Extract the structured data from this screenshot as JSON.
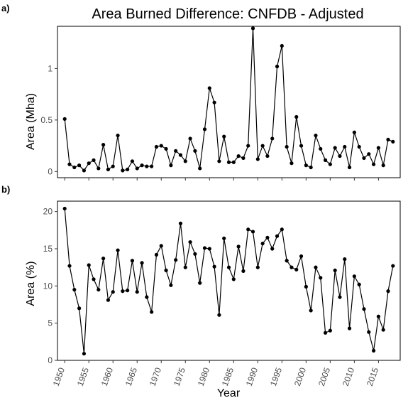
{
  "figure": {
    "title": "Area Burned Difference: CNFDB - Adjusted",
    "xlabel": "Year"
  },
  "chart_data": [
    {
      "type": "line",
      "panel_label": "a)",
      "ylabel": "Area (Mha)",
      "xlim": [
        1948.5,
        2019.5
      ],
      "ylim": [
        -0.06,
        1.41
      ],
      "yticks": [
        0,
        0.5,
        1
      ],
      "ytick_labels": [
        "0",
        "0.5",
        "1"
      ],
      "xticks": [
        1950,
        1955,
        1960,
        1965,
        1970,
        1975,
        1980,
        1985,
        1990,
        1995,
        2000,
        2005,
        2010,
        2015
      ],
      "xtick_labels": [],
      "grid": false,
      "x": [
        1950,
        1951,
        1952,
        1953,
        1954,
        1955,
        1956,
        1957,
        1958,
        1959,
        1960,
        1961,
        1962,
        1963,
        1964,
        1965,
        1966,
        1967,
        1968,
        1969,
        1970,
        1971,
        1972,
        1973,
        1974,
        1975,
        1976,
        1977,
        1978,
        1979,
        1980,
        1981,
        1982,
        1983,
        1984,
        1985,
        1986,
        1987,
        1988,
        1989,
        1990,
        1991,
        1992,
        1993,
        1994,
        1995,
        1996,
        1997,
        1998,
        1999,
        2000,
        2001,
        2002,
        2003,
        2004,
        2005,
        2006,
        2007,
        2008,
        2009,
        2010,
        2011,
        2012,
        2013,
        2014,
        2015,
        2016,
        2017,
        2018
      ],
      "y": [
        0.51,
        0.07,
        0.04,
        0.06,
        0.01,
        0.08,
        0.11,
        0.03,
        0.26,
        0.02,
        0.05,
        0.35,
        0.01,
        0.02,
        0.1,
        0.03,
        0.06,
        0.05,
        0.05,
        0.24,
        0.25,
        0.22,
        0.06,
        0.2,
        0.16,
        0.1,
        0.32,
        0.2,
        0.03,
        0.41,
        0.81,
        0.67,
        0.1,
        0.34,
        0.09,
        0.09,
        0.15,
        0.13,
        0.25,
        1.39,
        0.12,
        0.25,
        0.15,
        0.32,
        1.02,
        1.22,
        0.24,
        0.08,
        0.53,
        0.25,
        0.06,
        0.04,
        0.35,
        0.22,
        0.11,
        0.07,
        0.23,
        0.15,
        0.24,
        0.04,
        0.38,
        0.24,
        0.13,
        0.17,
        0.07,
        0.23,
        0.06,
        0.31,
        0.29
      ]
    },
    {
      "type": "line",
      "panel_label": "b)",
      "ylabel": "Area (%)",
      "xlim": [
        1948.5,
        2019.5
      ],
      "ylim": [
        0,
        21.4
      ],
      "yticks": [
        0,
        5,
        10,
        15,
        20
      ],
      "ytick_labels": [
        "0",
        "5",
        "10",
        "15",
        "20"
      ],
      "xticks": [
        1950,
        1955,
        1960,
        1965,
        1970,
        1975,
        1980,
        1985,
        1990,
        1995,
        2000,
        2005,
        2010,
        2015
      ],
      "xtick_labels": [
        "1950",
        "1955",
        "1960",
        "1965",
        "1970",
        "1975",
        "1980",
        "1985",
        "1990",
        "1995",
        "2000",
        "2005",
        "2010",
        "2015"
      ],
      "grid": false,
      "x": [
        1950,
        1951,
        1952,
        1953,
        1954,
        1955,
        1956,
        1957,
        1958,
        1959,
        1960,
        1961,
        1962,
        1963,
        1964,
        1965,
        1966,
        1967,
        1968,
        1969,
        1970,
        1971,
        1972,
        1973,
        1974,
        1975,
        1976,
        1977,
        1978,
        1979,
        1980,
        1981,
        1982,
        1983,
        1984,
        1985,
        1986,
        1987,
        1988,
        1989,
        1990,
        1991,
        1992,
        1993,
        1994,
        1995,
        1996,
        1997,
        1998,
        1999,
        2000,
        2001,
        2002,
        2003,
        2004,
        2005,
        2006,
        2007,
        2008,
        2009,
        2010,
        2011,
        2012,
        2013,
        2014,
        2015,
        2016,
        2017,
        2018
      ],
      "y": [
        20.4,
        12.7,
        9.5,
        7.0,
        0.9,
        12.8,
        10.9,
        9.5,
        13.7,
        8.1,
        9.2,
        14.8,
        9.3,
        9.4,
        13.4,
        9.2,
        13.1,
        8.5,
        6.5,
        14.2,
        15.4,
        12.1,
        10.1,
        13.5,
        18.4,
        12.5,
        15.9,
        14.3,
        10.4,
        15.1,
        15.0,
        12.6,
        6.1,
        16.4,
        12.5,
        10.9,
        15.3,
        12.0,
        17.6,
        17.3,
        12.5,
        15.7,
        16.5,
        15.0,
        16.7,
        17.6,
        13.4,
        12.5,
        12.2,
        14.0,
        9.9,
        6.7,
        12.5,
        11.1,
        3.7,
        4.0,
        12.1,
        8.5,
        13.6,
        4.3,
        11.3,
        10.2,
        6.9,
        3.8,
        1.3,
        5.9,
        4.1,
        9.3,
        12.7
      ]
    }
  ]
}
